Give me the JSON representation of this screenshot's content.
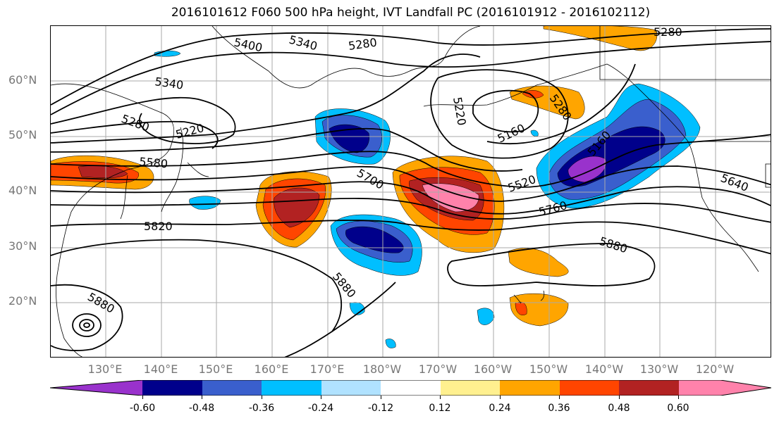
{
  "title": "2016101612 F060 500 hPa height, IVT Landfall PC (2016101912 - 2016102112)",
  "lat_labels": [
    "60°N",
    "50°N",
    "40°N",
    "30°N",
    "20°N"
  ],
  "lon_labels": [
    "130°E",
    "140°E",
    "150°E",
    "160°E",
    "170°E",
    "180°W",
    "170°W",
    "160°W",
    "150°W",
    "140°W",
    "130°W",
    "120°W"
  ],
  "contour_labels": [
    "5400",
    "5340",
    "5280",
    "5340",
    "5280",
    "5220",
    "5580",
    "5820",
    "5880",
    "5880",
    "5700",
    "5220",
    "5160",
    "5280",
    "5280",
    "5520",
    "5160",
    "5760",
    "5880",
    "5640"
  ],
  "colorbar": {
    "colors": [
      "#9932cc",
      "#00008b",
      "#3a5fcd",
      "#00bfff",
      "#b0e2ff",
      "#ffffff",
      "#fff08f",
      "#ffa500",
      "#ff4500",
      "#b22222",
      "#ff82ab"
    ],
    "tick_labels": [
      "-0.60",
      "-0.48",
      "-0.36",
      "-0.24",
      "-0.12",
      "0.12",
      "0.24",
      "0.36",
      "0.48",
      "0.60"
    ]
  }
}
